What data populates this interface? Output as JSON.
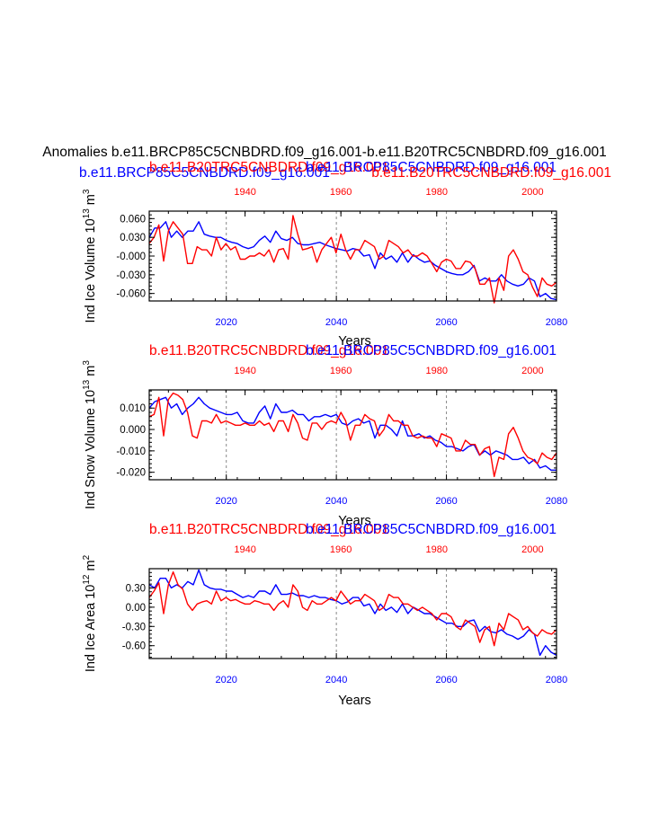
{
  "figure": {
    "main_title": "Anomalies b.e11.BRCP85C5CNBDRD.f09_g16.001-b.e11.B20TRC5CNBDRD.f09_g16.001",
    "colors": {
      "future": "#0000ff",
      "historical": "#ff0000",
      "grid": "#888888",
      "axis": "#000000"
    }
  },
  "chart_data": [
    {
      "type": "line",
      "ylabel": "Ind Ice Volume 10",
      "ylabel_sup": "13",
      "ylabel_unit": " m",
      "ylabel_unit_sup": "3",
      "xlabel": "Years",
      "top_titles": [
        {
          "text": "b.e11.BRCP85C5CNBDRD.f09_g16.001",
          "color": "#0000ff",
          "align": "left"
        },
        {
          "text": "b.e11.B20TRC5CNBDRD.f09_g16.001",
          "color": "#ff0000",
          "align": "left"
        },
        {
          "text": "b.e11.BRCP85C5CNBDRD.f09_g16.001",
          "color": "#0000ff",
          "align": "right"
        },
        {
          "text": "b.e11.B20TRC5CNBDRD.f09_g16.001",
          "color": "#ff0000",
          "align": "right"
        }
      ],
      "x_bottom": {
        "range": [
          2006,
          2080
        ],
        "ticks": [
          2020,
          2040,
          2060,
          2080
        ],
        "labels": [
          "2020",
          "2040",
          "2060",
          "2080"
        ]
      },
      "x_top": {
        "range": [
          1920,
          2005
        ],
        "ticks": [
          1940,
          1960,
          1980,
          2000
        ],
        "labels": [
          "1940",
          "1960",
          "1980",
          "2000"
        ]
      },
      "ylim": [
        -0.072,
        0.072
      ],
      "yticks": [
        0.06,
        0.03,
        0.0,
        -0.03,
        -0.06
      ],
      "ytick_labels": [
        "0.060",
        "0.030",
        "-0.000",
        "-0.030",
        "-0.060"
      ],
      "gridlines_x": [
        2020,
        2040,
        2060
      ],
      "series": [
        {
          "name": "b.e11.BRCP85C5CNBDRD.f09_g16.001",
          "color": "#0000ff",
          "axis": "bottom",
          "x_start": 2006,
          "values": [
            0.03,
            0.045,
            0.045,
            0.055,
            0.03,
            0.04,
            0.03,
            0.04,
            0.04,
            0.055,
            0.035,
            0.032,
            0.03,
            0.03,
            0.025,
            0.022,
            0.02,
            0.015,
            0.012,
            0.015,
            0.025,
            0.032,
            0.022,
            0.04,
            0.028,
            0.025,
            0.03,
            0.02,
            0.018,
            0.018,
            0.02,
            0.022,
            0.018,
            0.015,
            0.012,
            0.01,
            0.008,
            0.012,
            0.01,
            0.0,
            0.002,
            -0.02,
            0.005,
            -0.005,
            0.0,
            -0.01,
            0.005,
            -0.01,
            0.002,
            -0.005,
            -0.01,
            -0.008,
            -0.015,
            -0.02,
            -0.025,
            -0.028,
            -0.03,
            -0.03,
            -0.025,
            -0.015,
            -0.04,
            -0.035,
            -0.04,
            -0.04,
            -0.03,
            -0.04,
            -0.045,
            -0.048,
            -0.045,
            -0.035,
            -0.04,
            -0.065,
            -0.06,
            -0.068,
            -0.07
          ]
        },
        {
          "name": "b.e11.B20TRC5CNBDRD.f09_g16.001",
          "color": "#ff0000",
          "axis": "top",
          "x_start": 1920,
          "values": [
            0.02,
            0.03,
            0.05,
            -0.008,
            0.04,
            0.055,
            0.045,
            0.035,
            -0.012,
            -0.012,
            0.015,
            0.01,
            0.01,
            0.0,
            0.03,
            0.01,
            0.02,
            0.01,
            0.015,
            -0.005,
            -0.005,
            0.0,
            0.0,
            0.005,
            0.0,
            0.01,
            -0.01,
            0.01,
            0.012,
            -0.005,
            0.065,
            0.035,
            0.01,
            0.012,
            0.015,
            -0.01,
            0.01,
            0.02,
            0.03,
            0.005,
            0.035,
            0.01,
            -0.005,
            0.01,
            0.01,
            0.025,
            0.02,
            0.015,
            -0.005,
            0.0,
            0.025,
            0.02,
            0.015,
            0.005,
            0.01,
            0.0,
            0.0,
            0.005,
            0.0,
            -0.012,
            -0.025,
            -0.01,
            -0.005,
            -0.008,
            -0.02,
            -0.02,
            -0.008,
            -0.01,
            -0.02,
            -0.045,
            -0.045,
            -0.035,
            -0.075,
            -0.035,
            -0.055,
            0.0,
            0.01,
            -0.005,
            -0.025,
            -0.03,
            -0.05,
            -0.065,
            -0.035,
            -0.045,
            -0.048,
            -0.042
          ]
        }
      ]
    },
    {
      "type": "line",
      "ylabel": "Ind Snow Volume 10",
      "ylabel_sup": "13",
      "ylabel_unit": " m",
      "ylabel_unit_sup": "3",
      "xlabel": "Years",
      "top_titles": [
        {
          "text": "b.e11.B20TRC5CNBDRD.f09_g16.001",
          "color": "#ff0000",
          "align": "left"
        },
        {
          "text": "b.e11.BRCP85C5CNBDRD.f09_g16.001",
          "color": "#0000ff",
          "align": "right"
        }
      ],
      "x_bottom": {
        "range": [
          2006,
          2080
        ],
        "ticks": [
          2020,
          2040,
          2060,
          2080
        ],
        "labels": [
          "2020",
          "2040",
          "2060",
          "2080"
        ]
      },
      "x_top": {
        "range": [
          1920,
          2005
        ],
        "ticks": [
          1940,
          1960,
          1980,
          2000
        ],
        "labels": [
          "1940",
          "1960",
          "1980",
          "2000"
        ]
      },
      "ylim": [
        -0.0235,
        0.0185
      ],
      "yticks": [
        0.01,
        0.0,
        -0.01,
        -0.02
      ],
      "ytick_labels": [
        "0.010",
        "0.000",
        "-0.010",
        "-0.020"
      ],
      "gridlines_x": [
        2020,
        2040,
        2060
      ],
      "series": [
        {
          "name": "b.e11.BRCP85C5CNBDRD.f09_g16.001",
          "color": "#0000ff",
          "axis": "bottom",
          "x_start": 2006,
          "values": [
            0.01,
            0.013,
            0.014,
            0.015,
            0.01,
            0.012,
            0.007,
            0.01,
            0.012,
            0.015,
            0.012,
            0.01,
            0.009,
            0.008,
            0.007,
            0.007,
            0.008,
            0.004,
            0.003,
            0.003,
            0.008,
            0.011,
            0.005,
            0.012,
            0.008,
            0.008,
            0.009,
            0.007,
            0.007,
            0.004,
            0.006,
            0.006,
            0.007,
            0.006,
            0.007,
            0.003,
            0.002,
            0.004,
            0.005,
            0.003,
            0.004,
            -0.004,
            0.002,
            0.002,
            0.0,
            -0.003,
            0.004,
            -0.003,
            -0.003,
            -0.002,
            -0.004,
            -0.003,
            -0.005,
            -0.006,
            -0.008,
            -0.008,
            -0.009,
            -0.01,
            -0.008,
            -0.007,
            -0.012,
            -0.01,
            -0.012,
            -0.01,
            -0.011,
            -0.012,
            -0.014,
            -0.014,
            -0.013,
            -0.016,
            -0.014,
            -0.018,
            -0.017,
            -0.019,
            -0.019
          ]
        },
        {
          "name": "b.e11.B20TRC5CNBDRD.f09_g16.001",
          "color": "#ff0000",
          "axis": "top",
          "x_start": 1920,
          "values": [
            0.006,
            0.007,
            0.015,
            -0.003,
            0.014,
            0.017,
            0.016,
            0.014,
            0.008,
            -0.003,
            -0.004,
            0.004,
            0.004,
            0.003,
            0.007,
            0.003,
            0.004,
            0.003,
            0.002,
            0.002,
            0.003,
            0.002,
            0.002,
            0.004,
            0.002,
            0.003,
            -0.001,
            0.004,
            0.004,
            -0.001,
            0.007,
            0.003,
            -0.004,
            -0.005,
            0.003,
            0.003,
            0.0,
            0.003,
            0.004,
            0.003,
            0.008,
            0.004,
            -0.005,
            0.002,
            0.002,
            0.007,
            0.005,
            0.004,
            -0.003,
            0.0,
            0.007,
            0.004,
            0.004,
            0.002,
            0.002,
            -0.003,
            -0.004,
            -0.003,
            -0.004,
            -0.004,
            -0.008,
            -0.002,
            -0.003,
            -0.004,
            -0.01,
            -0.01,
            -0.005,
            -0.007,
            -0.007,
            -0.012,
            -0.009,
            -0.008,
            -0.022,
            -0.013,
            -0.014,
            -0.002,
            0.001,
            -0.004,
            -0.01,
            -0.013,
            -0.014,
            -0.016,
            -0.011,
            -0.013,
            -0.014,
            -0.011
          ]
        }
      ]
    },
    {
      "type": "line",
      "ylabel": "Ind Ice Area 10",
      "ylabel_sup": "12",
      "ylabel_unit": " m",
      "ylabel_unit_sup": "2",
      "xlabel": "Years",
      "top_titles": [
        {
          "text": "b.e11.B20TRC5CNBDRD.f09_g16.001",
          "color": "#ff0000",
          "align": "left"
        },
        {
          "text": "b.e11.BRCP85C5CNBDRD.f09_g16.001",
          "color": "#0000ff",
          "align": "right"
        }
      ],
      "x_bottom": {
        "range": [
          2006,
          2080
        ],
        "ticks": [
          2020,
          2040,
          2060,
          2080
        ],
        "labels": [
          "2020",
          "2040",
          "2060",
          "2080"
        ]
      },
      "x_top": {
        "range": [
          1920,
          2005
        ],
        "ticks": [
          1940,
          1960,
          1980,
          2000
        ],
        "labels": [
          "1940",
          "1960",
          "1980",
          "2000"
        ]
      },
      "ylim": [
        -0.8,
        0.6
      ],
      "yticks": [
        0.3,
        0.0,
        -0.3,
        -0.6
      ],
      "ytick_labels": [
        "0.30",
        "0.00",
        "-0.30",
        "-0.60"
      ],
      "gridlines_x": [
        2020,
        2040,
        2060
      ],
      "series": [
        {
          "name": "b.e11.BRCP85C5CNBDRD.f09_g16.001",
          "color": "#0000ff",
          "axis": "bottom",
          "x_start": 2006,
          "values": [
            0.35,
            0.3,
            0.45,
            0.45,
            0.3,
            0.35,
            0.3,
            0.4,
            0.35,
            0.58,
            0.35,
            0.3,
            0.28,
            0.28,
            0.25,
            0.25,
            0.2,
            0.15,
            0.18,
            0.15,
            0.25,
            0.25,
            0.2,
            0.35,
            0.2,
            0.2,
            0.22,
            0.18,
            0.18,
            0.15,
            0.18,
            0.15,
            0.15,
            0.12,
            0.1,
            0.05,
            0.08,
            0.15,
            0.15,
            0.02,
            0.05,
            -0.1,
            0.05,
            -0.05,
            0.0,
            -0.08,
            0.05,
            -0.1,
            0.0,
            -0.05,
            -0.1,
            -0.1,
            -0.15,
            -0.2,
            -0.25,
            -0.25,
            -0.3,
            -0.3,
            -0.22,
            -0.2,
            -0.38,
            -0.3,
            -0.38,
            -0.4,
            -0.35,
            -0.42,
            -0.45,
            -0.5,
            -0.45,
            -0.35,
            -0.42,
            -0.75,
            -0.6,
            -0.7,
            -0.75
          ]
        },
        {
          "name": "b.e11.B20TRC5CNBDRD.f09_g16.001",
          "color": "#ff0000",
          "axis": "top",
          "x_start": 1920,
          "values": [
            0.15,
            0.25,
            0.38,
            -0.1,
            0.35,
            0.55,
            0.35,
            0.28,
            0.05,
            -0.05,
            0.05,
            0.08,
            0.1,
            0.05,
            0.25,
            0.1,
            0.15,
            0.1,
            0.12,
            0.08,
            0.05,
            0.05,
            0.1,
            0.08,
            0.05,
            0.05,
            -0.05,
            0.05,
            0.1,
            0.0,
            0.35,
            0.25,
            0.0,
            -0.05,
            0.1,
            0.05,
            0.05,
            0.1,
            0.15,
            0.1,
            0.25,
            0.15,
            0.05,
            0.1,
            0.1,
            0.2,
            0.15,
            0.1,
            -0.05,
            0.0,
            0.2,
            0.15,
            0.15,
            0.05,
            0.05,
            0.0,
            -0.05,
            0.0,
            -0.05,
            -0.1,
            -0.2,
            -0.1,
            -0.1,
            -0.15,
            -0.3,
            -0.35,
            -0.2,
            -0.25,
            -0.3,
            -0.55,
            -0.35,
            -0.3,
            -0.6,
            -0.25,
            -0.35,
            -0.1,
            -0.15,
            -0.2,
            -0.35,
            -0.3,
            -0.4,
            -0.45,
            -0.35,
            -0.4,
            -0.42,
            -0.35
          ]
        }
      ]
    }
  ]
}
